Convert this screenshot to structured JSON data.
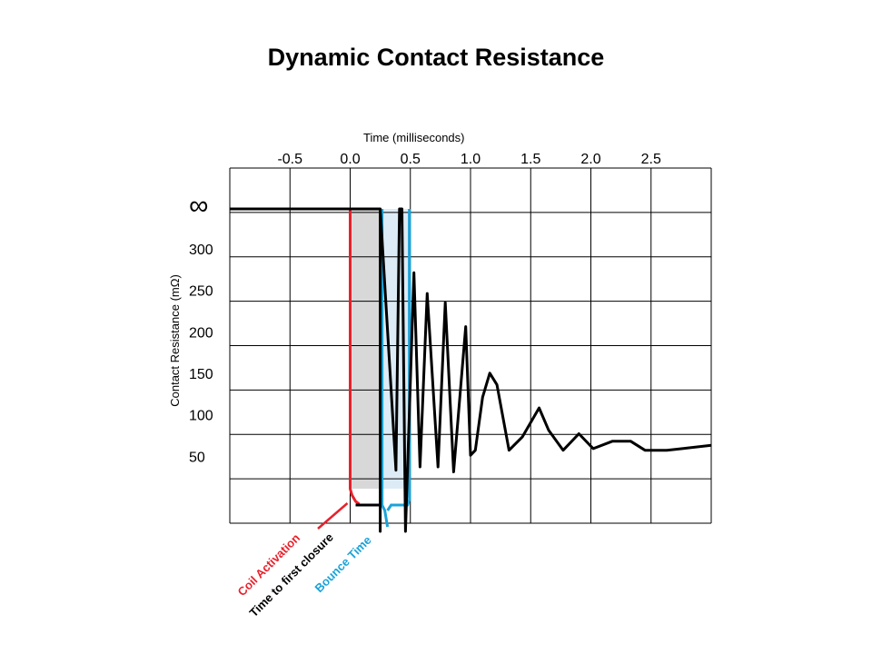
{
  "title": "Dynamic Contact Resistance",
  "chart_data": {
    "type": "line",
    "title": "Dynamic Contact Resistance",
    "xlabel": "Time  (milliseconds)",
    "ylabel": "Contact  Resistance  (mΩ)",
    "xlim": [
      -1.0,
      3.0
    ],
    "x_ticks": [
      "-0.5",
      "0.0",
      "0.5",
      "1.0",
      "1.5",
      "2.0",
      "2.5"
    ],
    "x_tick_values": [
      -0.5,
      0.0,
      0.5,
      1.0,
      1.5,
      2.0,
      2.5
    ],
    "y_ticks": [
      "∞",
      "300",
      "250",
      "200",
      "150",
      "100",
      "50"
    ],
    "y_tick_values": [
      350,
      300,
      250,
      200,
      150,
      100,
      50
    ],
    "ylim": [
      0,
      350
    ],
    "grid": true,
    "trace_color": "#000000",
    "series": [
      {
        "values": [
          [
            -1.0,
            350
          ],
          [
            -0.25,
            350
          ],
          [
            0.25,
            350
          ],
          [
            0.25,
            0
          ],
          [
            0.25,
            350
          ],
          [
            0.38,
            42
          ],
          [
            0.41,
            350
          ],
          [
            0.43,
            350
          ],
          [
            0.46,
            0
          ],
          [
            0.53,
            280
          ],
          [
            0.58,
            46
          ],
          [
            0.64,
            255
          ],
          [
            0.73,
            46
          ],
          [
            0.79,
            244
          ],
          [
            0.86,
            40
          ],
          [
            0.96,
            215
          ],
          [
            1.0,
            60
          ],
          [
            1.04,
            66
          ],
          [
            1.1,
            130
          ],
          [
            1.16,
            159
          ],
          [
            1.22,
            145
          ],
          [
            1.32,
            66
          ],
          [
            1.43,
            82
          ],
          [
            1.57,
            117
          ],
          [
            1.65,
            90
          ],
          [
            1.77,
            66
          ],
          [
            1.9,
            86
          ],
          [
            2.02,
            68
          ],
          [
            2.18,
            77
          ],
          [
            2.33,
            77
          ],
          [
            2.45,
            66
          ],
          [
            2.63,
            66
          ],
          [
            2.76,
            68
          ],
          [
            3.0,
            72
          ]
        ]
      }
    ],
    "annotations": [
      {
        "label": "Coil Activation",
        "color": "#e8212b",
        "x": 0.0
      },
      {
        "label": "Time to first closure",
        "color": "#000000",
        "x_start": 0.0,
        "x_end": 0.25
      },
      {
        "label": "Bounce Time",
        "color": "#1ca3d8",
        "x_start": 0.25,
        "x_end": 0.5
      }
    ],
    "shaded_regions": [
      {
        "x_start": 0.0,
        "x_end": 0.25,
        "color": "#d8d8d8"
      },
      {
        "x_start": 0.25,
        "x_end": 0.5,
        "color": "#dcebf5"
      }
    ]
  }
}
